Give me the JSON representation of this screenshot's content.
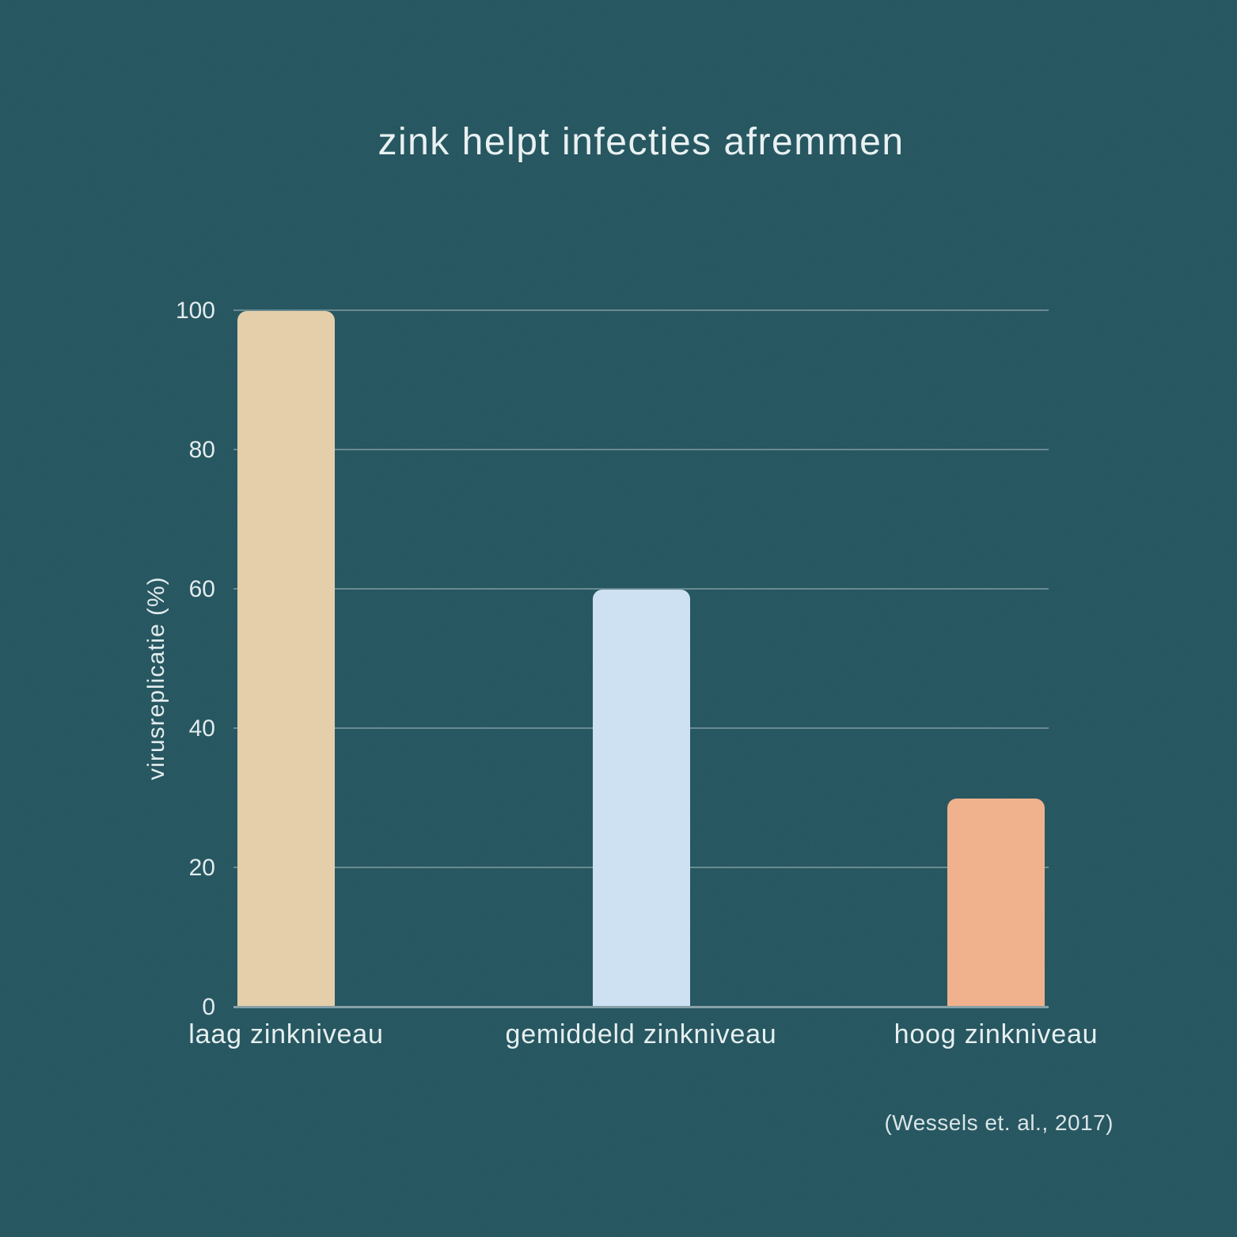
{
  "chart_data": {
    "type": "bar",
    "title": "zink helpt infecties afremmen",
    "categories": [
      "laag zinkniveau",
      "gemiddeld zinkniveau",
      "hoog zinkniveau"
    ],
    "values": [
      100,
      60,
      30
    ],
    "xlabel": "",
    "ylabel": "virusreplicatie (%)",
    "ylim": [
      0,
      100
    ],
    "yticks": [
      0,
      20,
      40,
      60,
      80,
      100
    ],
    "grid": true,
    "legend": "none",
    "source": "(Wessels et. al., 2017)",
    "colors": {
      "background": "#24555f",
      "gridline": "#76939b",
      "axis_line": "#87a1a9",
      "text": "#e7eff1",
      "bars": [
        "#e5cfab",
        "#cde1f2",
        "#f0b28d"
      ]
    }
  }
}
